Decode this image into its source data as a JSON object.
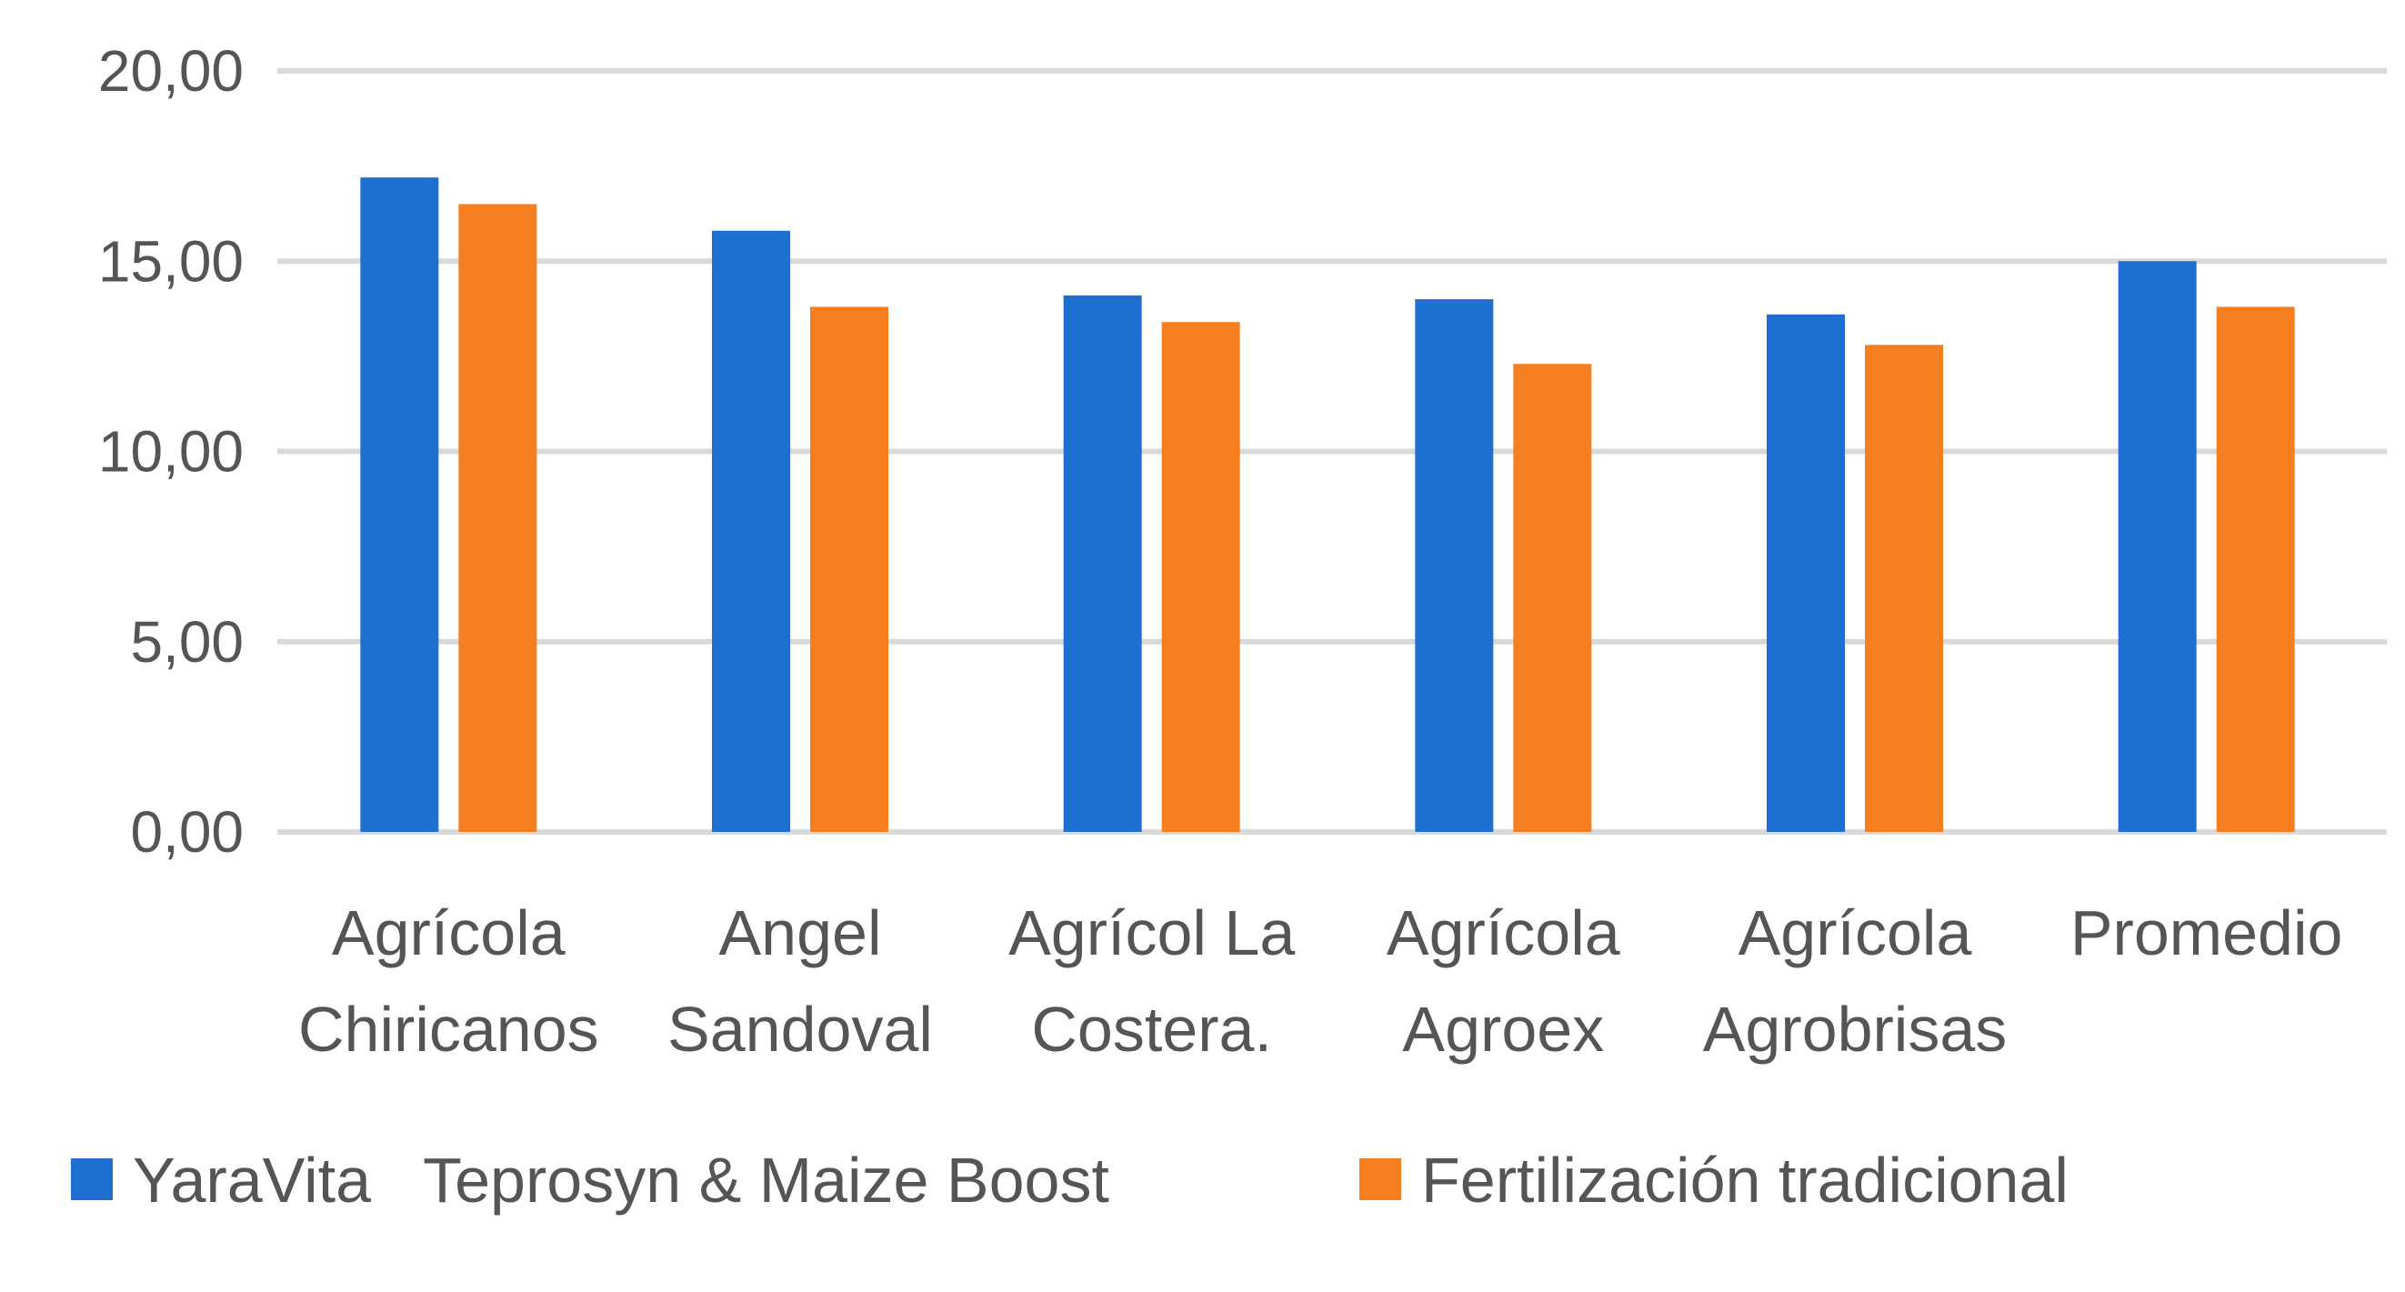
{
  "chart_data": {
    "type": "bar",
    "title": "",
    "xlabel": "",
    "ylabel": "",
    "ylim": [
      0,
      20
    ],
    "y_ticks": [
      "0,00",
      "5,00",
      "10,00",
      "15,00",
      "20,00"
    ],
    "y_tick_values": [
      0,
      5,
      10,
      15,
      20
    ],
    "grid": true,
    "legend_position": "bottom",
    "categories": [
      [
        "Agrícola",
        "Chiricanos"
      ],
      [
        "Angel",
        "Sandoval"
      ],
      [
        "Agrícol La",
        "Costera."
      ],
      [
        "Agrícola",
        "Agroex"
      ],
      [
        "Agrícola",
        "Agrobrisas"
      ],
      [
        "Promedio"
      ]
    ],
    "series": [
      {
        "name": "YaraVita   Teprosyn & Maize Boost",
        "color": "#1f6fd0",
        "values": [
          17.2,
          15.8,
          14.1,
          14.0,
          13.6,
          15.0
        ]
      },
      {
        "name": "Fertilización tradicional",
        "color": "#f57f20",
        "values": [
          16.5,
          13.8,
          13.4,
          12.3,
          12.8,
          13.8
        ]
      }
    ]
  }
}
